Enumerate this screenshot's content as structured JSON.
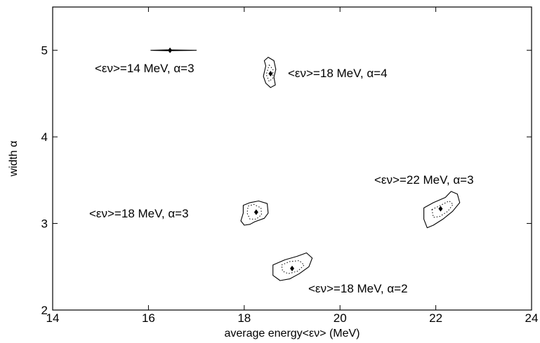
{
  "chart_data": {
    "type": "scatter",
    "xlabel": "average energy<εν> (MeV)",
    "ylabel": "width α",
    "xlim": [
      14,
      24
    ],
    "ylim": [
      2,
      5.5
    ],
    "xticks": [
      "14",
      "16",
      "18",
      "20",
      "22",
      "24"
    ],
    "yticks": [
      "2",
      "3",
      "4",
      "5"
    ],
    "grid": false,
    "legend": "none",
    "points": [
      {
        "x": 16.45,
        "y": 5.0,
        "label": "<εν>=14 MeV, α=3"
      },
      {
        "x": 18.55,
        "y": 4.73,
        "label": "<εν>=18 MeV, α=4"
      },
      {
        "x": 18.25,
        "y": 3.13,
        "label": "<εν>=18 MeV, α=3"
      },
      {
        "x": 22.1,
        "y": 3.17,
        "label": "<εν>=22 MeV, α=3"
      },
      {
        "x": 19.0,
        "y": 2.48,
        "label": "<εν>=18 MeV, α=2"
      }
    ],
    "annotations": [
      "<εν>=14 MeV, α=3",
      "<εν>=18 MeV, α=4",
      "<εν>=18 MeV, α=3",
      "<εν>=22 MeV, α=3",
      "<εν>=18 MeV, α=2"
    ],
    "contours": [
      {
        "name": "14-3",
        "solid": [
          [
            16.05,
            5.0
          ],
          [
            16.4,
            5.005
          ],
          [
            17.0,
            5.0
          ],
          [
            16.4,
            4.995
          ],
          [
            16.05,
            5.0
          ]
        ],
        "dotted": []
      },
      {
        "name": "18-4",
        "solid": [
          [
            18.5,
            4.92
          ],
          [
            18.62,
            4.88
          ],
          [
            18.66,
            4.78
          ],
          [
            18.62,
            4.69
          ],
          [
            18.65,
            4.6
          ],
          [
            18.55,
            4.57
          ],
          [
            18.45,
            4.62
          ],
          [
            18.4,
            4.7
          ],
          [
            18.45,
            4.82
          ],
          [
            18.42,
            4.88
          ],
          [
            18.5,
            4.92
          ]
        ],
        "dotted": [
          [
            18.52,
            4.83
          ],
          [
            18.6,
            4.78
          ],
          [
            18.6,
            4.68
          ],
          [
            18.52,
            4.64
          ],
          [
            18.46,
            4.72
          ],
          [
            18.52,
            4.83
          ]
        ]
      },
      {
        "name": "18-3",
        "solid": [
          [
            17.98,
            3.21
          ],
          [
            18.12,
            3.24
          ],
          [
            18.3,
            3.26
          ],
          [
            18.48,
            3.23
          ],
          [
            18.5,
            3.12
          ],
          [
            18.42,
            3.06
          ],
          [
            18.22,
            3.02
          ],
          [
            18.12,
            2.99
          ],
          [
            18.0,
            2.98
          ],
          [
            17.93,
            3.03
          ],
          [
            17.98,
            3.12
          ],
          [
            17.98,
            3.21
          ]
        ],
        "dotted": [
          [
            18.08,
            3.2
          ],
          [
            18.2,
            3.22
          ],
          [
            18.35,
            3.18
          ],
          [
            18.36,
            3.1
          ],
          [
            18.25,
            3.05
          ],
          [
            18.12,
            3.05
          ],
          [
            18.06,
            3.12
          ],
          [
            18.08,
            3.2
          ]
        ]
      },
      {
        "name": "22-3",
        "solid": [
          [
            21.75,
            3.18
          ],
          [
            21.95,
            3.24
          ],
          [
            22.2,
            3.3
          ],
          [
            22.32,
            3.37
          ],
          [
            22.45,
            3.34
          ],
          [
            22.5,
            3.24
          ],
          [
            22.35,
            3.14
          ],
          [
            22.15,
            3.05
          ],
          [
            21.95,
            2.98
          ],
          [
            21.82,
            2.95
          ],
          [
            21.75,
            3.05
          ],
          [
            21.75,
            3.18
          ]
        ],
        "dotted": [
          [
            21.92,
            3.16
          ],
          [
            22.1,
            3.21
          ],
          [
            22.28,
            3.26
          ],
          [
            22.36,
            3.22
          ],
          [
            22.25,
            3.14
          ],
          [
            22.08,
            3.08
          ],
          [
            21.95,
            3.07
          ],
          [
            21.92,
            3.16
          ]
        ]
      },
      {
        "name": "18-2",
        "solid": [
          [
            18.6,
            2.52
          ],
          [
            18.85,
            2.58
          ],
          [
            19.1,
            2.62
          ],
          [
            19.3,
            2.66
          ],
          [
            19.42,
            2.6
          ],
          [
            19.35,
            2.5
          ],
          [
            19.15,
            2.42
          ],
          [
            18.95,
            2.36
          ],
          [
            18.75,
            2.34
          ],
          [
            18.6,
            2.4
          ],
          [
            18.6,
            2.52
          ]
        ],
        "dotted": [
          [
            18.78,
            2.52
          ],
          [
            18.95,
            2.56
          ],
          [
            19.15,
            2.57
          ],
          [
            19.25,
            2.52
          ],
          [
            19.12,
            2.45
          ],
          [
            18.92,
            2.42
          ],
          [
            18.8,
            2.45
          ],
          [
            18.78,
            2.52
          ]
        ]
      }
    ]
  }
}
